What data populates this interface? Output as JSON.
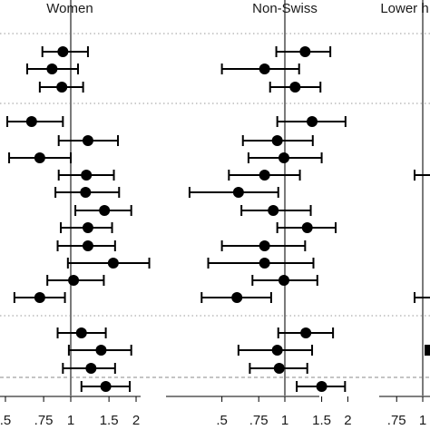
{
  "chart_data": {
    "type": "scatter",
    "description_kind": "forest-plot",
    "markers": "point estimate with confidence interval",
    "reference_value": 1,
    "grid": false,
    "panels": [
      {
        "title": "Women",
        "xticks": [
          ".5",
          ".75",
          "1",
          "1.5",
          "2"
        ],
        "rows": [
          {
            "row": 1,
            "estimate": 0.92,
            "ci": [
              0.74,
              1.2
            ]
          },
          {
            "row": 2,
            "estimate": 0.82,
            "ci": [
              0.63,
              1.08
            ]
          },
          {
            "row": 3,
            "estimate": 0.91,
            "ci": [
              0.72,
              1.14
            ]
          },
          {
            "row": 4,
            "estimate": 0.66,
            "ci": [
              0.51,
              0.92
            ]
          },
          {
            "row": 5,
            "estimate": 1.2,
            "ci": [
              0.88,
              1.65
            ]
          },
          {
            "row": 6,
            "estimate": 0.72,
            "ci": [
              0.52,
              1.0
            ]
          },
          {
            "row": 7,
            "estimate": 1.18,
            "ci": [
              0.88,
              1.58
            ]
          },
          {
            "row": 8,
            "estimate": 1.17,
            "ci": [
              0.85,
              1.67
            ]
          },
          {
            "row": 9,
            "estimate": 1.43,
            "ci": [
              1.05,
              1.9
            ]
          },
          {
            "row": 10,
            "estimate": 1.2,
            "ci": [
              0.9,
              1.55
            ]
          },
          {
            "row": 11,
            "estimate": 1.2,
            "ci": [
              0.87,
              1.6
            ]
          },
          {
            "row": 12,
            "estimate": 1.57,
            "ci": [
              0.97,
              2.3
            ]
          },
          {
            "row": 13,
            "estimate": 1.03,
            "ci": [
              0.78,
              1.42
            ]
          },
          {
            "row": 14,
            "estimate": 0.72,
            "ci": [
              0.55,
              0.94
            ]
          },
          {
            "row": 15,
            "estimate": 1.12,
            "ci": [
              0.87,
              1.45
            ]
          },
          {
            "row": 16,
            "estimate": 1.38,
            "ci": [
              0.98,
              1.9
            ]
          },
          {
            "row": 17,
            "estimate": 1.24,
            "ci": [
              0.92,
              1.6
            ]
          },
          {
            "row": 18,
            "estimate": 1.45,
            "ci": [
              1.12,
              1.87
            ]
          }
        ]
      },
      {
        "title": "Non-Swiss",
        "xticks": [
          ".5",
          ".75",
          "1",
          "1.5",
          "2"
        ],
        "rows": [
          {
            "row": 1,
            "estimate": 1.25,
            "ci": [
              0.91,
              1.65
            ]
          },
          {
            "row": 2,
            "estimate": 0.8,
            "ci": [
              0.5,
              1.17
            ]
          },
          {
            "row": 3,
            "estimate": 1.12,
            "ci": [
              0.85,
              1.48
            ]
          },
          {
            "row": 4,
            "estimate": 1.35,
            "ci": [
              0.92,
              1.95
            ]
          },
          {
            "row": 5,
            "estimate": 0.92,
            "ci": [
              0.63,
              1.36
            ]
          },
          {
            "row": 6,
            "estimate": 0.99,
            "ci": [
              0.67,
              1.5
            ]
          },
          {
            "row": 7,
            "estimate": 0.8,
            "ci": [
              0.54,
              1.18
            ]
          },
          {
            "row": 8,
            "estimate": 0.6,
            "ci": [
              0.35,
              0.93
            ]
          },
          {
            "row": 9,
            "estimate": 0.88,
            "ci": [
              0.62,
              1.33
            ]
          },
          {
            "row": 10,
            "estimate": 1.28,
            "ci": [
              0.92,
              1.75
            ]
          },
          {
            "row": 11,
            "estimate": 0.8,
            "ci": [
              0.5,
              1.25
            ]
          },
          {
            "row": 12,
            "estimate": 0.8,
            "ci": [
              0.43,
              1.37
            ]
          },
          {
            "row": 13,
            "estimate": 0.99,
            "ci": [
              0.7,
              1.43
            ]
          },
          {
            "row": 14,
            "estimate": 0.59,
            "ci": [
              0.4,
              0.86
            ]
          },
          {
            "row": 15,
            "estimate": 1.26,
            "ci": [
              0.93,
              1.7
            ]
          },
          {
            "row": 16,
            "estimate": 0.92,
            "ci": [
              0.6,
              1.35
            ]
          },
          {
            "row": 17,
            "estimate": 0.94,
            "ci": [
              0.68,
              1.28
            ]
          },
          {
            "row": 18,
            "estimate": 1.5,
            "ci": [
              1.14,
              1.94
            ]
          }
        ]
      },
      {
        "title": "Lower h",
        "xticks": [
          ".75",
          "1"
        ],
        "rows": []
      }
    ]
  }
}
